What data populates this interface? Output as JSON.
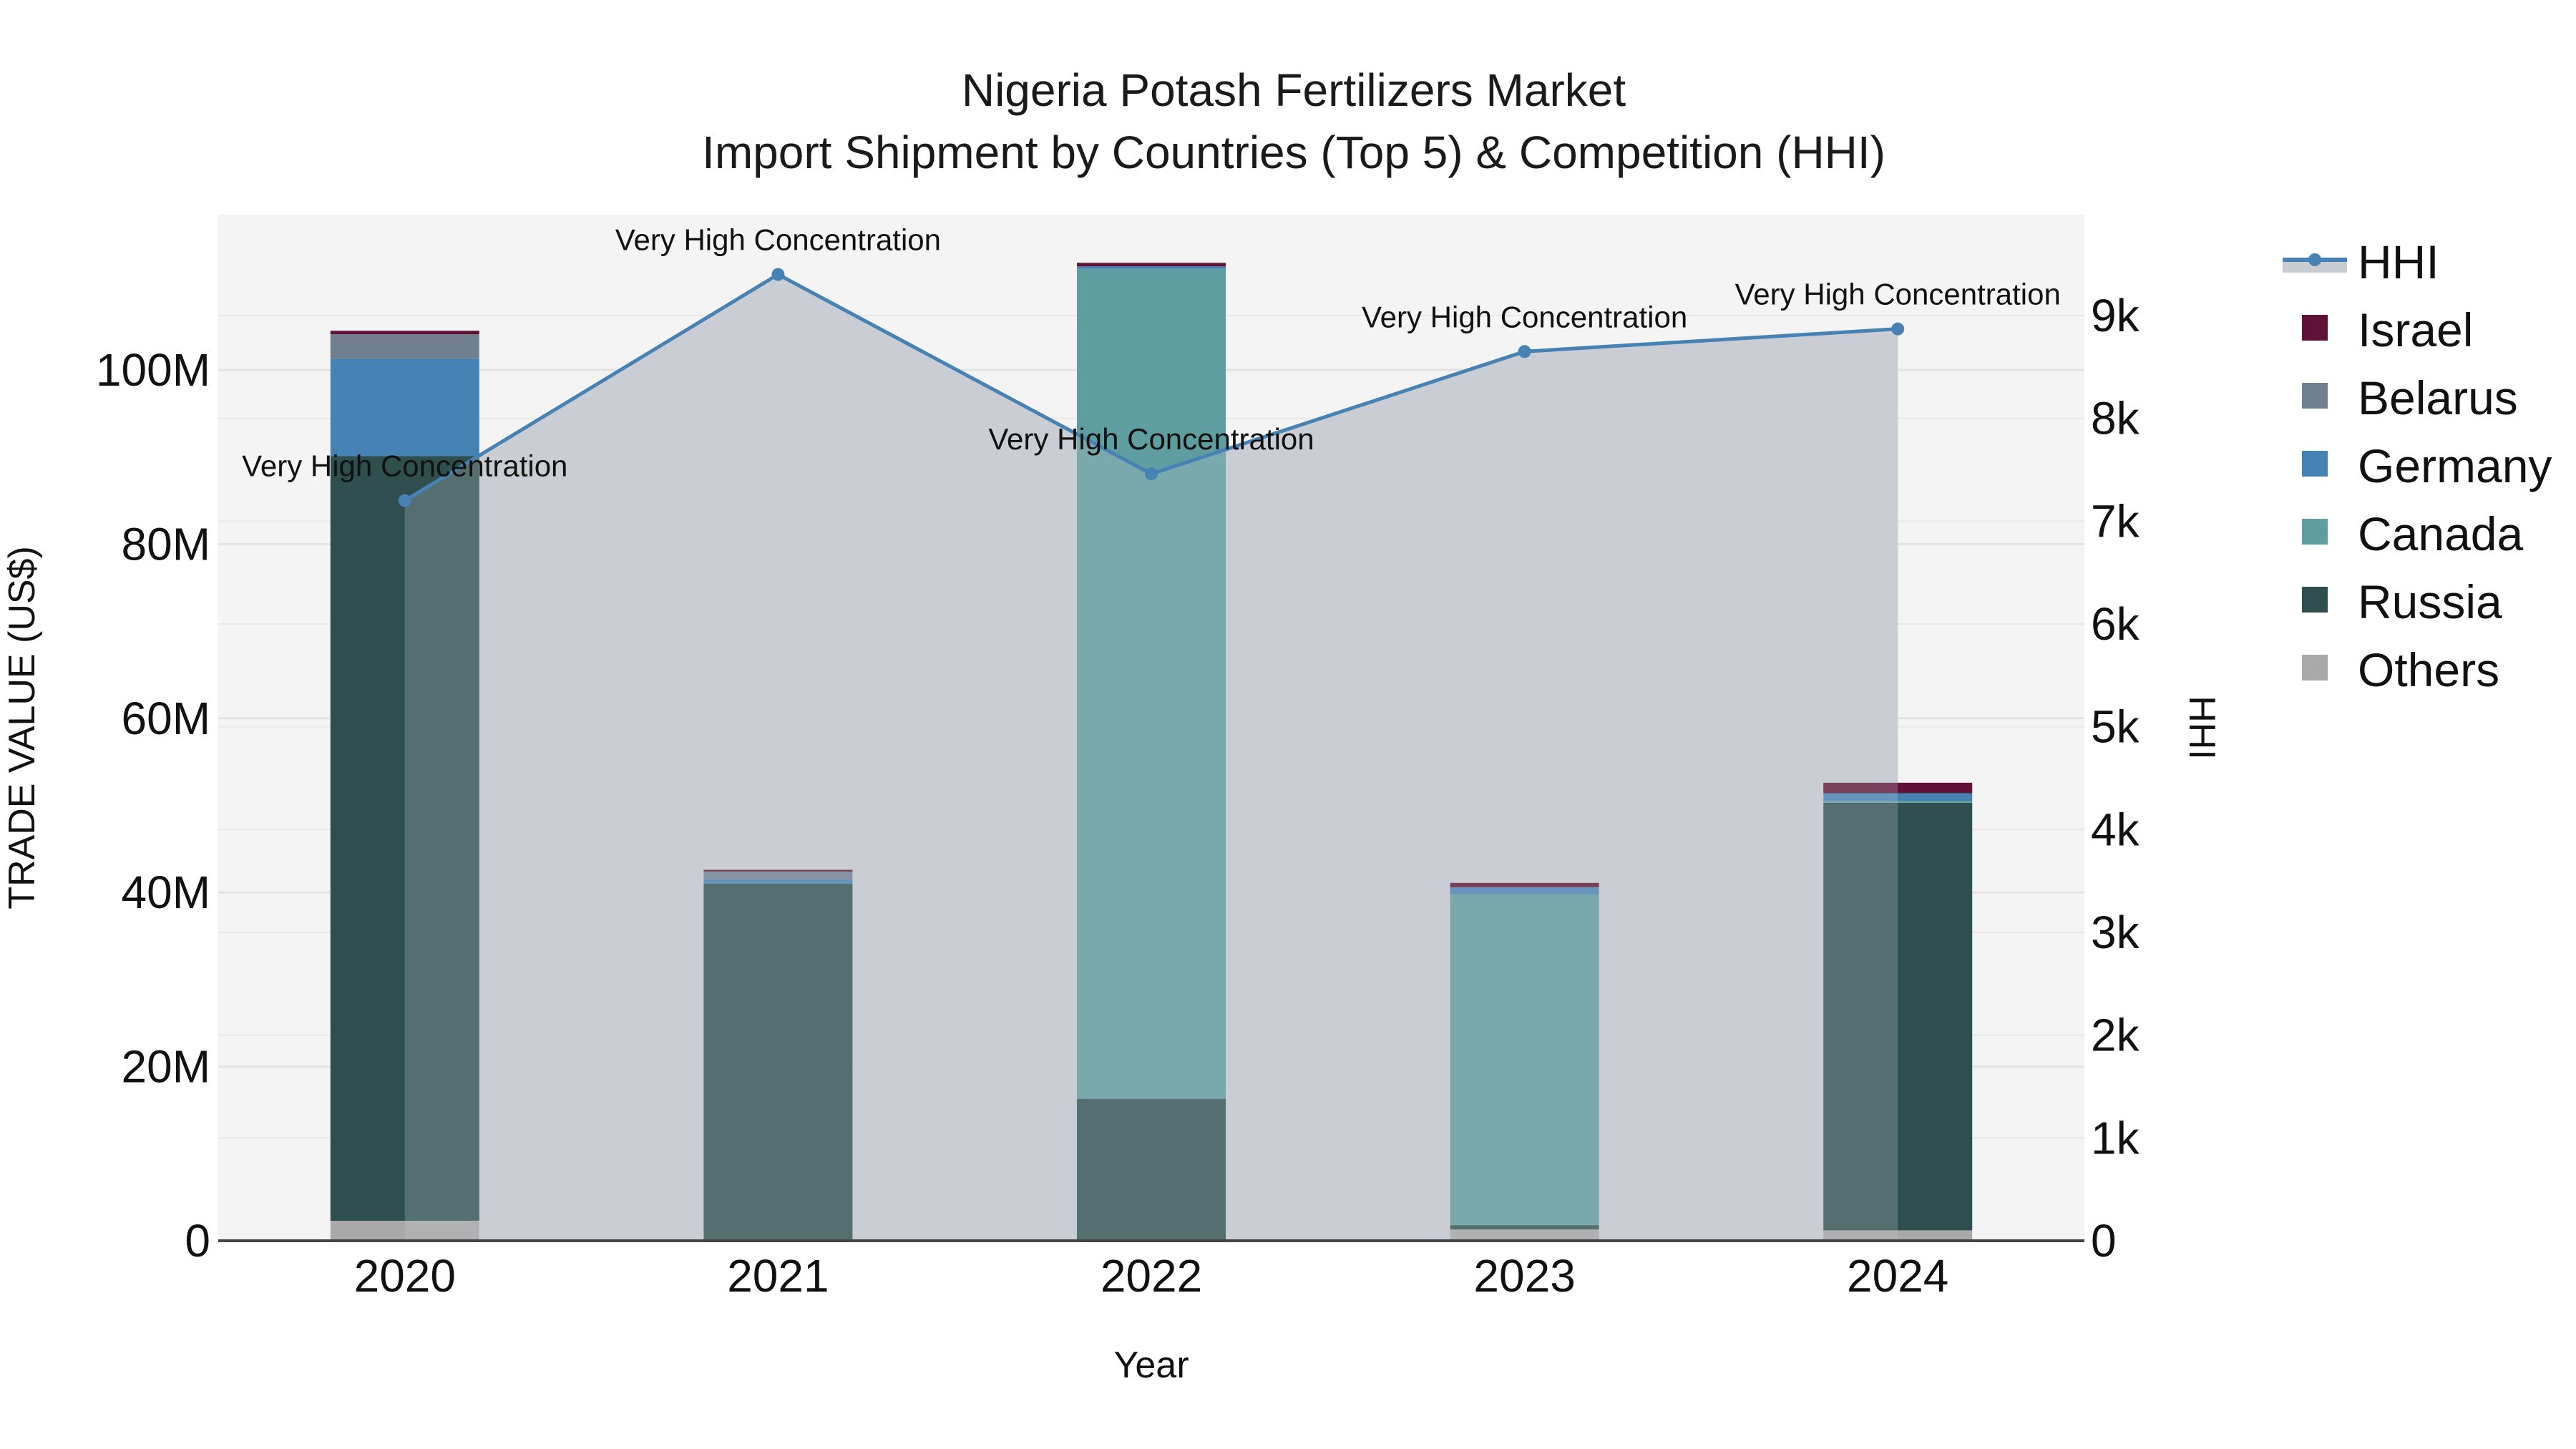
{
  "chart_data": {
    "type": "bar",
    "stacked": true,
    "title": "Nigeria Potash Fertilizers Market",
    "subtitle": "Import Shipment by Countries (Top 5) & Competition (HHI)",
    "xlabel": "Year",
    "ylabel": "TRADE VALUE (US$)",
    "y2label": "HHI",
    "categories": [
      "2020",
      "2021",
      "2022",
      "2023",
      "2024"
    ],
    "ylim": [
      0,
      117
    ],
    "y_unit": "M",
    "y_ticks": [
      "0",
      "20M",
      "40M",
      "60M",
      "80M",
      "100M"
    ],
    "y2lim": [
      0,
      9900
    ],
    "y2_ticks": [
      "0",
      "1k",
      "2k",
      "3k",
      "4k",
      "5k",
      "6k",
      "7k",
      "8k",
      "9k"
    ],
    "grid": true,
    "legend_position": "right",
    "series": [
      {
        "name": "Others",
        "color": "#a9a9a9",
        "values": [
          2.3,
          0.0,
          0.0,
          1.3,
          1.2
        ]
      },
      {
        "name": "Russia",
        "color": "#2f4f4f",
        "values": [
          87.8,
          41.0,
          16.3,
          0.5,
          49.1
        ]
      },
      {
        "name": "Canada",
        "color": "#5f9ea0",
        "values": [
          0.0,
          0.0,
          95.3,
          38.0,
          0.2
        ]
      },
      {
        "name": "Germany",
        "color": "#4682b4",
        "values": [
          11.2,
          0.5,
          0.3,
          0.8,
          0.9
        ]
      },
      {
        "name": "Belarus",
        "color": "#708090",
        "values": [
          2.8,
          0.9,
          0.0,
          0.0,
          0.0
        ]
      },
      {
        "name": "Israel",
        "color": "#5f1235",
        "values": [
          0.4,
          0.2,
          0.4,
          0.5,
          1.2
        ]
      }
    ],
    "line_series": {
      "name": "HHI",
      "color": "#4682b4",
      "fill_color": "#c8ccd3",
      "axis": "y2",
      "values": [
        7200,
        9400,
        7460,
        8650,
        8870
      ],
      "annotations": [
        "Very High Concentration",
        "Very High Concentration",
        "Very High Concentration",
        "Very High Concentration",
        "Very High Concentration"
      ]
    },
    "legend": [
      "HHI",
      "Israel",
      "Belarus",
      "Germany",
      "Canada",
      "Russia",
      "Others"
    ]
  }
}
